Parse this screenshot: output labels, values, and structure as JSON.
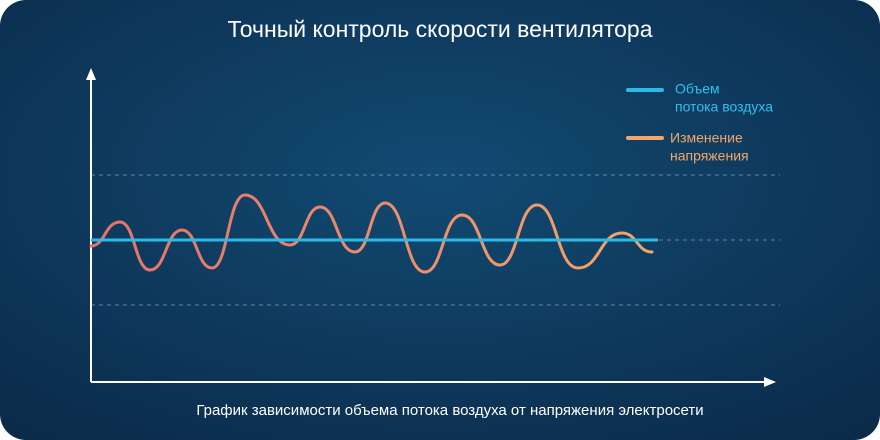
{
  "title": "Точный контроль скорости вентилятора",
  "legend": [
    {
      "lines": [
        "Объем",
        "потока воздуха"
      ]
    },
    {
      "lines": [
        "Изменение",
        "напряжения"
      ]
    }
  ],
  "caption": "График зависимости объема потока воздуха от напряжения электросети"
}
